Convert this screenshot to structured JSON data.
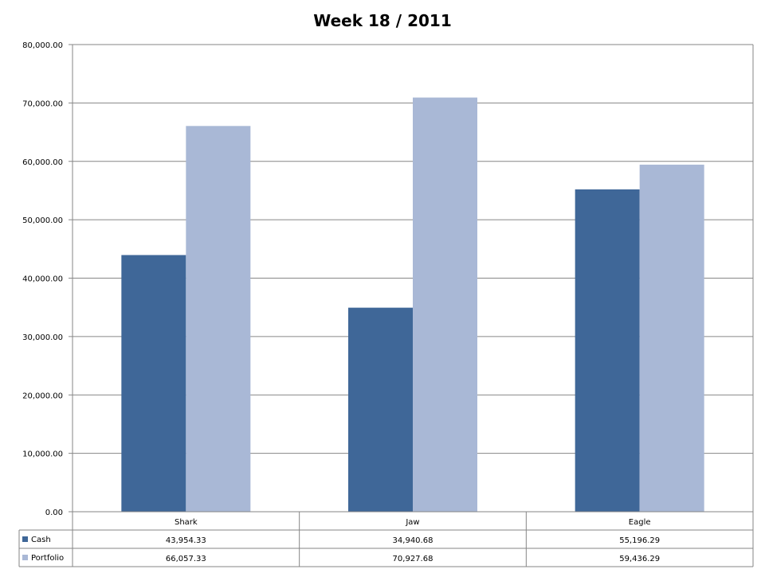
{
  "chart_data": {
    "type": "bar",
    "title": "Week 18 / 2011",
    "categories": [
      "Shark",
      "Jaw",
      "Eagle"
    ],
    "series": [
      {
        "name": "Cash",
        "values": [
          43954.33,
          34940.68,
          55196.29
        ],
        "labels": [
          "43,954.33",
          "34,940.68",
          "55,196.29"
        ],
        "color": "#3f6798"
      },
      {
        "name": "Portfolio",
        "values": [
          66057.33,
          70927.68,
          59436.29
        ],
        "labels": [
          "66,057.33",
          "70,927.68",
          "59,436.29"
        ],
        "color": "#a9b8d6"
      }
    ],
    "ylim": [
      0,
      80000
    ],
    "yticks": [
      0,
      10000,
      20000,
      30000,
      40000,
      50000,
      60000,
      70000,
      80000
    ],
    "ytick_labels": [
      "0.00",
      "10,000.00",
      "20,000.00",
      "30,000.00",
      "40,000.00",
      "50,000.00",
      "60,000.00",
      "70,000.00",
      "80,000.00"
    ],
    "grid": true,
    "legend": "data-table"
  }
}
